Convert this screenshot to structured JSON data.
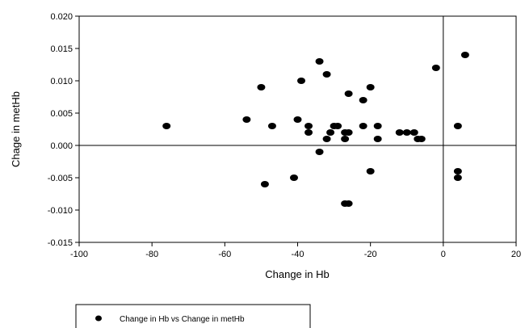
{
  "chart_data": {
    "type": "scatter",
    "title": "",
    "xlabel": "Change in Hb",
    "ylabel": "Chage in metHb",
    "xlim": [
      -100,
      20
    ],
    "ylim": [
      -0.015,
      0.02
    ],
    "xticks": [
      "-100",
      "-80",
      "-60",
      "-40",
      "-20",
      "0",
      "20"
    ],
    "yticks": [
      "-0.015",
      "-0.010",
      "-0.005",
      "0.000",
      "0.005",
      "0.010",
      "0.015",
      "0.020"
    ],
    "reference_lines": {
      "x": 0,
      "y": 0
    },
    "grid": false,
    "legend_position": "bottom-left",
    "series": [
      {
        "name": "Change in Hb vs Change in metHb",
        "color": "#000000",
        "points": [
          {
            "x": -76,
            "y": 0.003
          },
          {
            "x": -54,
            "y": 0.004
          },
          {
            "x": -50,
            "y": 0.009
          },
          {
            "x": -49,
            "y": -0.006
          },
          {
            "x": -47,
            "y": 0.003
          },
          {
            "x": -41,
            "y": -0.005
          },
          {
            "x": -40,
            "y": 0.004
          },
          {
            "x": -39,
            "y": 0.01
          },
          {
            "x": -37,
            "y": 0.003
          },
          {
            "x": -37,
            "y": 0.002
          },
          {
            "x": -34,
            "y": 0.013
          },
          {
            "x": -34,
            "y": -0.001
          },
          {
            "x": -32,
            "y": 0.011
          },
          {
            "x": -32,
            "y": 0.001
          },
          {
            "x": -31,
            "y": 0.002
          },
          {
            "x": -30,
            "y": 0.003
          },
          {
            "x": -29,
            "y": 0.003
          },
          {
            "x": -27,
            "y": 0.002
          },
          {
            "x": -27,
            "y": 0.001
          },
          {
            "x": -27,
            "y": -0.009
          },
          {
            "x": -26,
            "y": -0.009
          },
          {
            "x": -26,
            "y": 0.008
          },
          {
            "x": -26,
            "y": 0.002
          },
          {
            "x": -22,
            "y": 0.007
          },
          {
            "x": -22,
            "y": 0.003
          },
          {
            "x": -20,
            "y": 0.009
          },
          {
            "x": -20,
            "y": -0.004
          },
          {
            "x": -18,
            "y": 0.003
          },
          {
            "x": -18,
            "y": 0.001
          },
          {
            "x": -12,
            "y": 0.002
          },
          {
            "x": -10,
            "y": 0.002
          },
          {
            "x": -8,
            "y": 0.002
          },
          {
            "x": -7,
            "y": 0.001
          },
          {
            "x": -6,
            "y": 0.001
          },
          {
            "x": -2,
            "y": 0.012
          },
          {
            "x": 4,
            "y": 0.003
          },
          {
            "x": 4,
            "y": -0.004
          },
          {
            "x": 4,
            "y": -0.005
          },
          {
            "x": 6,
            "y": 0.014
          }
        ]
      }
    ]
  }
}
